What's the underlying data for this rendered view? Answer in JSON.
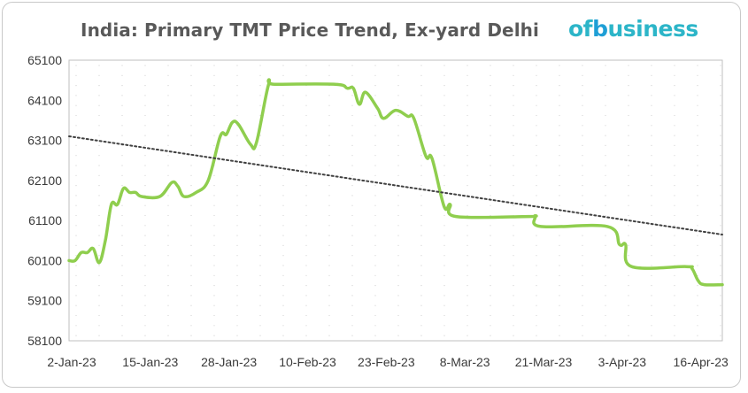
{
  "title": "India: Primary TMT Price Trend, Ex-yard Delhi",
  "logo": {
    "prefix": "of",
    "mark": "b",
    "suffix": "usiness"
  },
  "chart_data": {
    "type": "line",
    "title": "India: Primary TMT Price Trend, Ex-yard Delhi",
    "xlabel": "",
    "ylabel": "",
    "ylim": [
      58100,
      65100
    ],
    "yticks": [
      58100,
      59100,
      60100,
      61100,
      62100,
      63100,
      64100,
      65100
    ],
    "xticks": [
      "2-Jan-23",
      "15-Jan-23",
      "28-Jan-23",
      "10-Feb-23",
      "23-Feb-23",
      "8-Mar-23",
      "21-Mar-23",
      "3-Apr-23",
      "16-Apr-23"
    ],
    "xrange": [
      "2023-01-02",
      "2023-04-20"
    ],
    "grid": "dotted",
    "series": [
      {
        "color": "#8fce4e",
        "style": "solid",
        "points": [
          [
            "2023-01-02",
            60100
          ],
          [
            "2023-01-03",
            60100
          ],
          [
            "2023-01-04",
            60300
          ],
          [
            "2023-01-05",
            60300
          ],
          [
            "2023-01-06",
            60400
          ],
          [
            "2023-01-07",
            60050
          ],
          [
            "2023-01-08",
            60600
          ],
          [
            "2023-01-09",
            61500
          ],
          [
            "2023-01-10",
            61500
          ],
          [
            "2023-01-11",
            61900
          ],
          [
            "2023-01-12",
            61800
          ],
          [
            "2023-01-13",
            61800
          ],
          [
            "2023-01-14",
            61700
          ],
          [
            "2023-01-17",
            61700
          ],
          [
            "2023-01-19",
            62050
          ],
          [
            "2023-01-20",
            61950
          ],
          [
            "2023-01-21",
            61700
          ],
          [
            "2023-01-23",
            61800
          ],
          [
            "2023-01-25",
            62100
          ],
          [
            "2023-01-27",
            63200
          ],
          [
            "2023-01-28",
            63250
          ],
          [
            "2023-01-29",
            63550
          ],
          [
            "2023-01-30",
            63500
          ],
          [
            "2023-02-01",
            63000
          ],
          [
            "2023-02-02",
            63050
          ],
          [
            "2023-02-04",
            64500
          ],
          [
            "2023-02-05",
            64500
          ],
          [
            "2023-02-15",
            64500
          ],
          [
            "2023-02-17",
            64400
          ],
          [
            "2023-02-18",
            64400
          ],
          [
            "2023-02-19",
            64000
          ],
          [
            "2023-02-20",
            64300
          ],
          [
            "2023-02-22",
            63900
          ],
          [
            "2023-02-23",
            63650
          ],
          [
            "2023-02-25",
            63850
          ],
          [
            "2023-02-27",
            63700
          ],
          [
            "2023-02-28",
            63650
          ],
          [
            "2023-03-02",
            62700
          ],
          [
            "2023-03-03",
            62650
          ],
          [
            "2023-03-05",
            61450
          ],
          [
            "2023-03-06",
            61500
          ],
          [
            "2023-03-07",
            61200
          ],
          [
            "2023-03-19",
            61200
          ],
          [
            "2023-03-20",
            61200
          ],
          [
            "2023-03-21",
            60950
          ],
          [
            "2023-04-01",
            60950
          ],
          [
            "2023-04-03",
            60500
          ],
          [
            "2023-04-04",
            60500
          ],
          [
            "2023-04-05",
            59950
          ],
          [
            "2023-04-14",
            59950
          ],
          [
            "2023-04-15",
            59900
          ],
          [
            "2023-04-16",
            59600
          ],
          [
            "2023-04-17",
            59500
          ],
          [
            "2023-04-20",
            59500
          ]
        ]
      },
      {
        "color": "#404040",
        "style": "dotted",
        "trend": true,
        "points": [
          [
            "2023-01-02",
            63200
          ],
          [
            "2023-04-20",
            60750
          ]
        ]
      }
    ]
  }
}
